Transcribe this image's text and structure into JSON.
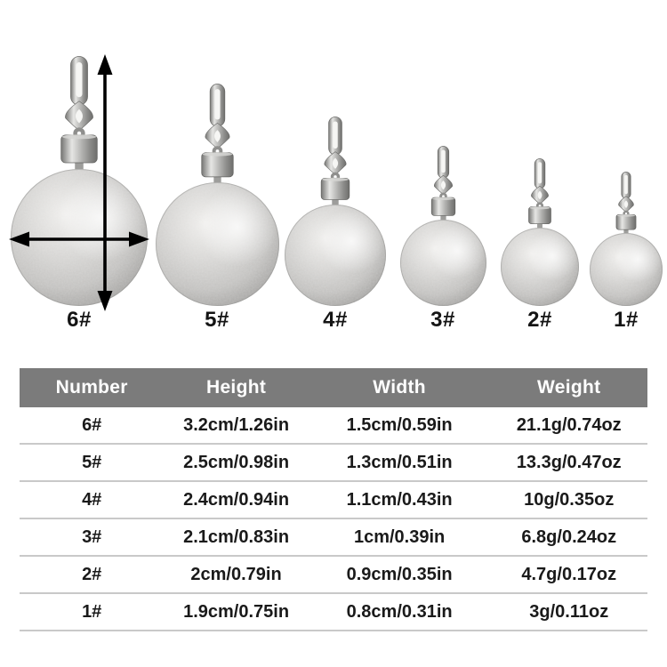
{
  "products": {
    "items": [
      {
        "label": "6#"
      },
      {
        "label": "5#"
      },
      {
        "label": "4#"
      },
      {
        "label": "3#"
      },
      {
        "label": "2#"
      },
      {
        "label": "1#"
      }
    ]
  },
  "table": {
    "headers": [
      "Number",
      "Height",
      "Width",
      "Weight"
    ],
    "rows": [
      [
        "6#",
        "3.2cm/1.26in",
        "1.5cm/0.59in",
        "21.1g/0.74oz"
      ],
      [
        "5#",
        "2.5cm/0.98in",
        "1.3cm/0.51in",
        "13.3g/0.47oz"
      ],
      [
        "4#",
        "2.4cm/0.94in",
        "1.1cm/0.43in",
        "10g/0.35oz"
      ],
      [
        "3#",
        "2.1cm/0.83in",
        "1cm/0.39in",
        "6.8g/0.24oz"
      ],
      [
        "2#",
        "2cm/0.79in",
        "0.9cm/0.35in",
        "4.7g/0.17oz"
      ],
      [
        "1#",
        "1.9cm/0.75in",
        "0.8cm/0.31in",
        "3g/0.11oz"
      ]
    ]
  },
  "colors": {
    "header_bg": "#7b7b7b",
    "header_text": "#ffffff",
    "body_text": "#1a1a1a",
    "row_divider": "#c9c9c9",
    "arrow": "#000000",
    "ball_mid": "#d8d7d5",
    "metal_mid": "#a8a8a6"
  }
}
